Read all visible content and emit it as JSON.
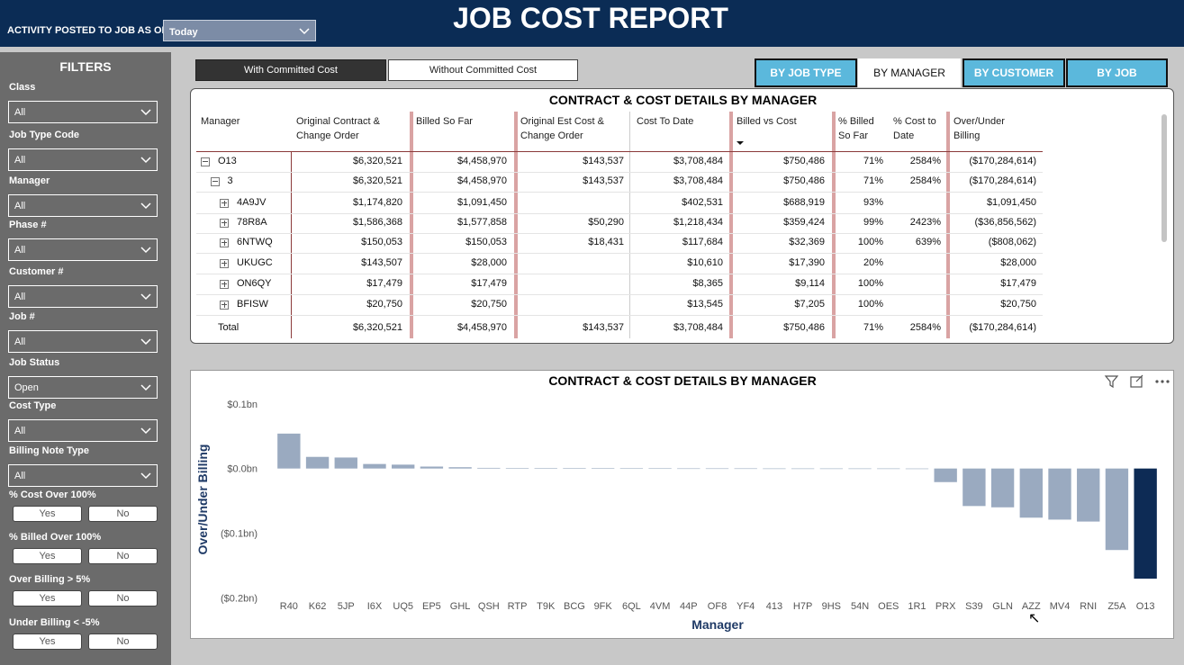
{
  "header": {
    "as_of_label": "ACTIVITY POSTED TO JOB AS OF:",
    "as_of_value": "Today",
    "title": "JOB COST REPORT"
  },
  "filters": {
    "title": "FILTERS",
    "dropdowns": [
      {
        "label": "Class",
        "value": "All"
      },
      {
        "label": "Job Type Code",
        "value": "All"
      },
      {
        "label": "Manager",
        "value": "All"
      },
      {
        "label": "Phase #",
        "value": "All"
      },
      {
        "label": "Customer #",
        "value": "All"
      },
      {
        "label": "Job #",
        "value": "All"
      },
      {
        "label": "Job Status",
        "value": "Open"
      },
      {
        "label": "Cost Type",
        "value": "All"
      },
      {
        "label": "Billing Note Type",
        "value": "All"
      }
    ],
    "toggles": [
      {
        "label": "% Cost Over 100%",
        "options": [
          "Yes",
          "No"
        ]
      },
      {
        "label": "% Billed Over 100%",
        "options": [
          "Yes",
          "No"
        ]
      },
      {
        "label": "Over Billing > 5%",
        "options": [
          "Yes",
          "No"
        ]
      },
      {
        "label": "Under Billing < -5%",
        "options": [
          "Yes",
          "No"
        ]
      }
    ]
  },
  "cost_tabs": [
    "With Committed Cost",
    "Without Committed Cost"
  ],
  "view_tabs": [
    "BY JOB TYPE",
    "BY MANAGER",
    "BY CUSTOMER",
    "BY JOB"
  ],
  "table": {
    "title": "CONTRACT & COST DETAILS BY MANAGER",
    "columns": [
      "Manager",
      "Original Contract & Change Order",
      "Billed So Far",
      "Original Est Cost & Change Order",
      "Cost To Date",
      "Billed vs Cost",
      "% Billed So Far",
      "% Cost to Date",
      "Over/Under Billing"
    ],
    "rows": [
      [
        "O13",
        "$6,320,521",
        "$4,458,970",
        "$143,537",
        "$3,708,484",
        "$750,486",
        "71%",
        "2584%",
        "($170,284,614)"
      ],
      [
        "3",
        "$6,320,521",
        "$4,458,970",
        "$143,537",
        "$3,708,484",
        "$750,486",
        "71%",
        "2584%",
        "($170,284,614)"
      ],
      [
        "4A9JV",
        "$1,174,820",
        "$1,091,450",
        null,
        "$402,531",
        "$688,919",
        "93%",
        null,
        "$1,091,450"
      ],
      [
        "78R8A",
        "$1,586,368",
        "$1,577,858",
        "$50,290",
        "$1,218,434",
        "$359,424",
        "99%",
        "2423%",
        "($36,856,562)"
      ],
      [
        "6NTWQ",
        "$150,053",
        "$150,053",
        "$18,431",
        "$117,684",
        "$32,369",
        "100%",
        "639%",
        "($808,062)"
      ],
      [
        "UKUGC",
        "$143,507",
        "$28,000",
        null,
        "$10,610",
        "$17,390",
        "20%",
        null,
        "$28,000"
      ],
      [
        "ON6QY",
        "$17,479",
        "$17,479",
        null,
        "$8,365",
        "$9,114",
        "100%",
        null,
        "$17,479"
      ],
      [
        "BFISW",
        "$20,750",
        "$20,750",
        null,
        "$13,545",
        "$7,205",
        "100%",
        null,
        "$20,750"
      ],
      [
        "Total",
        "$6,320,521",
        "$4,458,970",
        "$143,537",
        "$3,708,484",
        "$750,486",
        "71%",
        "2584%",
        "($170,284,614)"
      ]
    ]
  },
  "chart_data": {
    "type": "bar",
    "title": "CONTRACT & COST DETAILS BY MANAGER",
    "x_label": "Manager",
    "y_label": "Over/Under Billing",
    "categories": [
      "R40",
      "K62",
      "5JP",
      "I6X",
      "UQ5",
      "EP5",
      "GHL",
      "QSH",
      "RTP",
      "T9K",
      "BCG",
      "9FK",
      "6QL",
      "4VM",
      "44P",
      "OF8",
      "YF4",
      "413",
      "H7P",
      "9HS",
      "54N",
      "OES",
      "1R1",
      "PRX",
      "S39",
      "GLN",
      "AZZ",
      "MV4",
      "RNI",
      "Z5A",
      "O13"
    ],
    "values": [
      54000000,
      18000000,
      17000000,
      7000000,
      6000000,
      3000000,
      2000000,
      1000000,
      800000,
      600000,
      500000,
      400000,
      300000,
      300000,
      200000,
      200000,
      200000,
      100000,
      100000,
      100000,
      100000,
      100000,
      -500000,
      -21000000,
      -58000000,
      -60000000,
      -76000000,
      -79000000,
      -82000000,
      -126000000,
      -170284614
    ],
    "colors": [
      "#9aaac0",
      "#9aaac0",
      "#9aaac0",
      "#9aaac0",
      "#9aaac0",
      "#9aaac0",
      "#9aaac0",
      "#9aaac0",
      "#9aaac0",
      "#9aaac0",
      "#9aaac0",
      "#9aaac0",
      "#9aaac0",
      "#9aaac0",
      "#9aaac0",
      "#9aaac0",
      "#9aaac0",
      "#9aaac0",
      "#9aaac0",
      "#9aaac0",
      "#9aaac0",
      "#9aaac0",
      "#9aaac0",
      "#9aaac0",
      "#9aaac0",
      "#9aaac0",
      "#9aaac0",
      "#9aaac0",
      "#9aaac0",
      "#9aaac0",
      "#0d2b55"
    ],
    "ylim": [
      -205000000,
      115000000
    ],
    "yticks": [
      {
        "value": 100000000,
        "label": "$0.1bn"
      },
      {
        "value": 0,
        "label": "$0.0bn"
      },
      {
        "value": -100000000,
        "label": "($0.1bn)"
      },
      {
        "value": -200000000,
        "label": "($0.2bn)"
      }
    ]
  }
}
